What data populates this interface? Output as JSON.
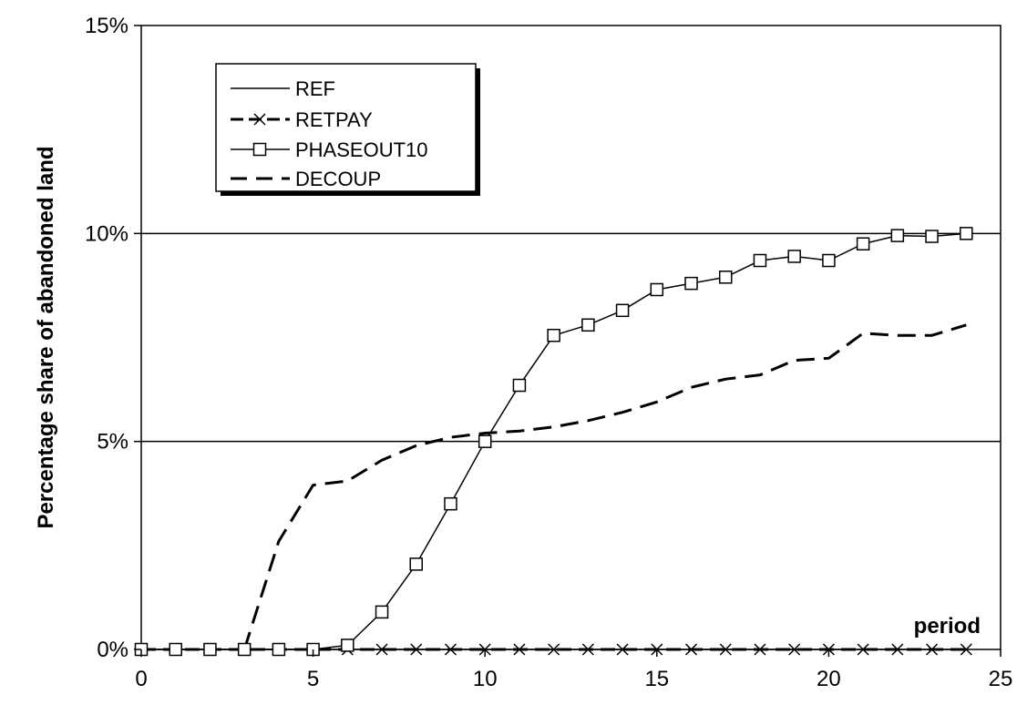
{
  "chart_data": {
    "type": "line",
    "xlabel": "period",
    "ylabel": "Percentage share of abandoned land",
    "xlim": [
      0,
      25
    ],
    "ylim": [
      0,
      15
    ],
    "x_ticks": [
      0,
      5,
      10,
      15,
      20,
      25
    ],
    "x_tick_labels": [
      "0",
      "5",
      "10",
      "15",
      "20",
      "25"
    ],
    "y_ticks": [
      0,
      5,
      10,
      15
    ],
    "y_tick_labels": [
      "0%",
      "5%",
      "10%",
      "15%"
    ],
    "gridlines_y": [
      5,
      10
    ],
    "legend_position": "top-left",
    "series": [
      {
        "name": "REF",
        "style": "solid",
        "marker": "none",
        "x": [
          0,
          1,
          2,
          3,
          4,
          5,
          6,
          7,
          8,
          9,
          10,
          11,
          12,
          13,
          14,
          15,
          16,
          17,
          18,
          19,
          20,
          21,
          22,
          23,
          24
        ],
        "values": [
          0,
          0,
          0,
          0,
          0,
          0,
          0,
          0,
          0,
          0,
          0,
          0,
          0,
          0,
          0,
          0,
          0,
          0,
          0,
          0,
          0,
          0,
          0,
          0,
          0
        ]
      },
      {
        "name": "RETPAY",
        "style": "solid",
        "marker": "x",
        "x": [
          0,
          1,
          2,
          3,
          4,
          5,
          6,
          7,
          8,
          9,
          10,
          11,
          12,
          13,
          14,
          15,
          16,
          17,
          18,
          19,
          20,
          21,
          22,
          23,
          24
        ],
        "values": [
          0,
          0,
          0,
          0,
          0,
          0,
          0,
          0,
          0,
          0,
          0,
          0,
          0,
          0,
          0,
          0,
          0,
          0,
          0,
          0,
          0,
          0,
          0,
          0,
          0
        ]
      },
      {
        "name": "PHASEOUT10",
        "style": "solid",
        "marker": "square",
        "x": [
          0,
          1,
          2,
          3,
          4,
          5,
          6,
          7,
          8,
          9,
          10,
          11,
          12,
          13,
          14,
          15,
          16,
          17,
          18,
          19,
          20,
          21,
          22,
          23,
          24
        ],
        "values": [
          0,
          0,
          0,
          0,
          0,
          0,
          0.1,
          0.9,
          2.05,
          3.5,
          5.0,
          6.35,
          7.55,
          7.8,
          8.15,
          8.65,
          8.8,
          8.95,
          9.35,
          9.45,
          9.35,
          9.75,
          9.95,
          9.93,
          10.0
        ]
      },
      {
        "name": "DECOUP",
        "style": "dashed",
        "marker": "none",
        "x": [
          3,
          4,
          5,
          6,
          7,
          8,
          9,
          10,
          11,
          12,
          13,
          14,
          15,
          16,
          17,
          18,
          19,
          20,
          21,
          22,
          23,
          24
        ],
        "values": [
          0,
          2.6,
          3.95,
          4.05,
          4.55,
          4.9,
          5.1,
          5.2,
          5.25,
          5.35,
          5.5,
          5.7,
          5.95,
          6.3,
          6.5,
          6.6,
          6.95,
          7.0,
          7.6,
          7.55,
          7.55,
          7.8
        ]
      }
    ]
  }
}
